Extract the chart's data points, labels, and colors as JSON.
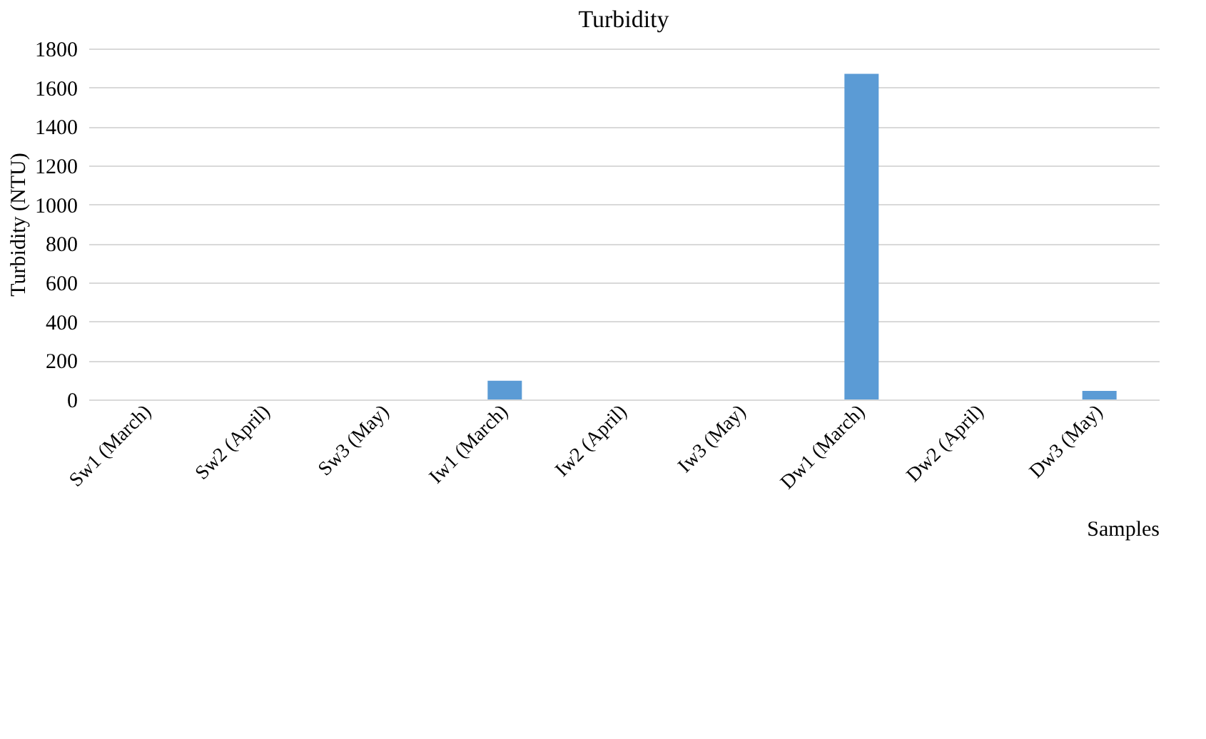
{
  "chart_data": {
    "type": "bar",
    "title": "Turbidity",
    "xlabel": "Samples",
    "ylabel": "Turbidity (NTU)",
    "categories": [
      "Sw1 (March)",
      "Sw2 (April)",
      "Sw3 (May)",
      "Iw1 (March)",
      "Iw2 (April)",
      "Iw3 (May)",
      "Dw1 (March)",
      "Dw2 (April)",
      "Dw3 (May)"
    ],
    "values": [
      0,
      0,
      0,
      96,
      0,
      0,
      1670,
      0,
      44
    ],
    "color": "#5b9bd5",
    "ylim": [
      0,
      1800
    ],
    "yticks": [
      0,
      200,
      400,
      600,
      800,
      1000,
      1200,
      1400,
      1600,
      1800
    ],
    "grid": "y"
  }
}
